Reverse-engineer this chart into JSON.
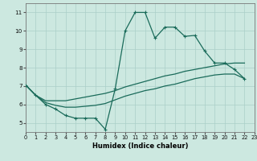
{
  "xlabel": "Humidex (Indice chaleur)",
  "bg_color": "#cce8e0",
  "grid_color": "#aacfc8",
  "line_color": "#1a6b5a",
  "xlim": [
    0,
    23
  ],
  "ylim": [
    4.5,
    11.5
  ],
  "xticks": [
    0,
    1,
    2,
    3,
    4,
    5,
    6,
    7,
    8,
    9,
    10,
    11,
    12,
    13,
    14,
    15,
    16,
    17,
    18,
    19,
    20,
    21,
    22,
    23
  ],
  "yticks": [
    5,
    6,
    7,
    8,
    9,
    10,
    11
  ],
  "line1_x": [
    0,
    1,
    2,
    3,
    4,
    5,
    6,
    7,
    8,
    9,
    10,
    11,
    12,
    13,
    14,
    15,
    16,
    17,
    18,
    19,
    20,
    21,
    22
  ],
  "line1_y": [
    7.05,
    6.5,
    6.0,
    5.75,
    5.4,
    5.25,
    5.25,
    5.25,
    4.65,
    6.85,
    10.0,
    11.0,
    11.0,
    9.6,
    10.2,
    10.2,
    9.7,
    9.75,
    8.9,
    8.25,
    8.25,
    7.9,
    7.4
  ],
  "line2_x": [
    0,
    1,
    2,
    3,
    4,
    5,
    6,
    7,
    8,
    9,
    10,
    11,
    12,
    13,
    14,
    15,
    16,
    17,
    18,
    19,
    20,
    21,
    22
  ],
  "line2_y": [
    7.05,
    6.5,
    6.2,
    6.2,
    6.2,
    6.3,
    6.4,
    6.5,
    6.6,
    6.75,
    6.95,
    7.1,
    7.25,
    7.4,
    7.55,
    7.65,
    7.8,
    7.9,
    8.0,
    8.1,
    8.2,
    8.25,
    8.25
  ],
  "line3_x": [
    0,
    1,
    2,
    3,
    4,
    5,
    6,
    7,
    8,
    9,
    10,
    11,
    12,
    13,
    14,
    15,
    16,
    17,
    18,
    19,
    20,
    21,
    22
  ],
  "line3_y": [
    7.05,
    6.5,
    6.1,
    5.95,
    5.85,
    5.85,
    5.9,
    5.95,
    6.05,
    6.25,
    6.45,
    6.6,
    6.75,
    6.85,
    7.0,
    7.1,
    7.25,
    7.4,
    7.5,
    7.6,
    7.65,
    7.65,
    7.4
  ]
}
